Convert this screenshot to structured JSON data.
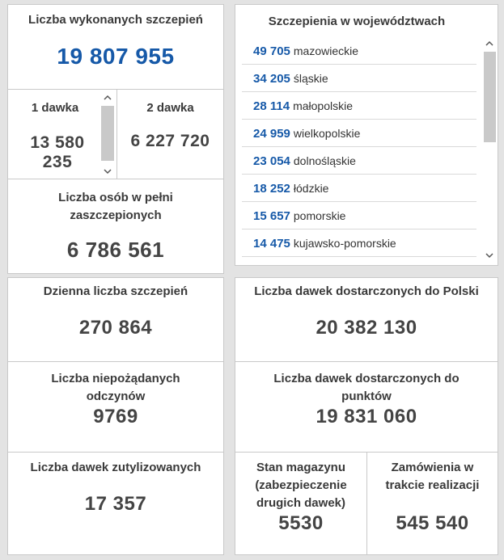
{
  "left_top": {
    "total_label": "Liczba wykonanych szczepień",
    "total_value": "19 807 955",
    "dose1_label": "1 dawka",
    "dose1_value_line1": "13 580",
    "dose1_value_line2": "235",
    "dose2_label": "2 dawka",
    "dose2_value": "6 227 720",
    "full_label_line1": "Liczba osób w pełni",
    "full_label_line2": "zaszczepionych",
    "full_value": "6 786 561"
  },
  "voivodeships": {
    "title": "Szczepienia w województwach",
    "items": [
      {
        "value": "49 705",
        "name": "mazowieckie"
      },
      {
        "value": "34 205",
        "name": "śląskie"
      },
      {
        "value": "28 114",
        "name": "małopolskie"
      },
      {
        "value": "24 959",
        "name": "wielkopolskie"
      },
      {
        "value": "23 054",
        "name": "dolnośląskie"
      },
      {
        "value": "18 252",
        "name": "łódzkie"
      },
      {
        "value": "15 657",
        "name": "pomorskie"
      },
      {
        "value": "14 475",
        "name": "kujawsko-pomorskie"
      }
    ]
  },
  "left_bottom": {
    "daily_label": "Dzienna liczba szczepień",
    "daily_value": "270 864",
    "adverse_label_line1": "Liczba niepożądanych",
    "adverse_label_line2": "odczynów",
    "adverse_value": "9769",
    "disposed_label": "Liczba dawek zutylizowanych",
    "disposed_value": "17 357"
  },
  "right_bottom": {
    "delivered_pl_label": "Liczba dawek dostarczonych do Polski",
    "delivered_pl_value": "20 382 130",
    "delivered_points_label_line1": "Liczba dawek dostarczonych do",
    "delivered_points_label_line2": "punktów",
    "delivered_points_value": "19 831 060",
    "stock_label_line1": "Stan magazynu",
    "stock_label_line2": "(zabezpieczenie",
    "stock_label_line3": "drugich dawek)",
    "stock_value": "5530",
    "orders_label_line1": "Zamówienia w",
    "orders_label_line2": "trakcie realizacji",
    "orders_value": "545 540"
  },
  "icons": {
    "scroll_up": "chevron-up-icon",
    "scroll_down": "chevron-down-icon"
  },
  "colors": {
    "accent_blue": "#1659a8",
    "text_dark": "#444444",
    "border": "#c9c9c9",
    "background": "#e3e3e3"
  }
}
